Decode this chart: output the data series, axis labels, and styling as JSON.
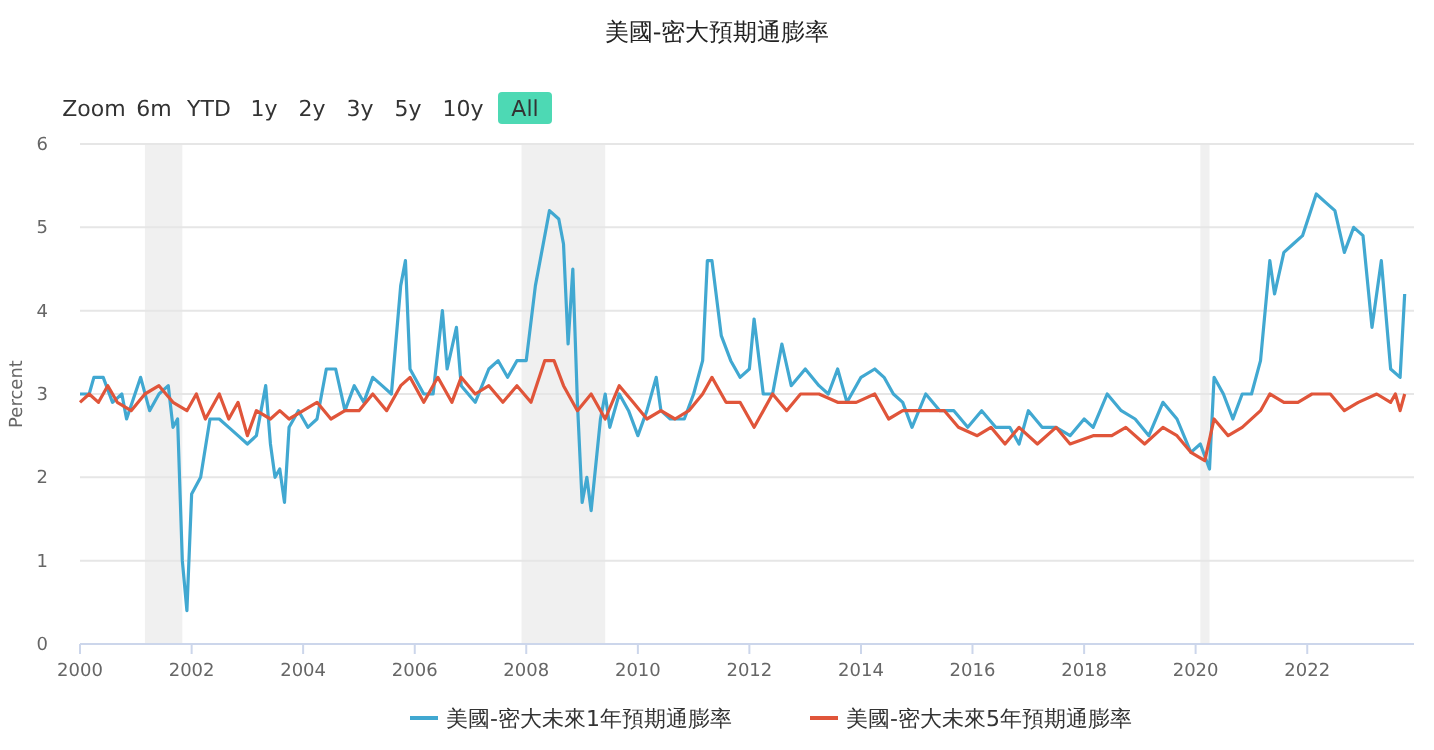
{
  "chart_data": {
    "type": "line",
    "title": "美國-密大預期通膨率",
    "ylabel": "Percent",
    "annotations": [
      "Zoom",
      "6m",
      "YTD",
      "1y",
      "2y",
      "3y",
      "5y",
      "10y",
      "All"
    ],
    "xlim": [
      "2000-01",
      "2023-12"
    ],
    "xticks": [
      "2000",
      "2002",
      "2004",
      "2006",
      "2008",
      "2010",
      "2012",
      "2014",
      "2016",
      "2018",
      "2020",
      "2022"
    ],
    "ylim": [
      0,
      6
    ],
    "yticks": [
      0,
      1,
      2,
      3,
      4,
      5,
      6
    ],
    "grid": "y",
    "legend": "bottom",
    "line_style": "solid",
    "marker": "none",
    "bands": [
      {
        "axis": "x",
        "from": "2001-03",
        "to": "2001-11",
        "color": "#f0f0f0"
      },
      {
        "axis": "x",
        "from": "2007-12",
        "to": "2009-06",
        "color": "#f0f0f0"
      },
      {
        "axis": "x",
        "from": "2020-02",
        "to": "2020-04",
        "color": "#f0f0f0"
      }
    ],
    "series": [
      {
        "name": "美國-密大未來1年預期通膨率",
        "color": "#41a8d1",
        "x": [
          "2000-01",
          "2000-03",
          "2000-04",
          "2000-06",
          "2000-08",
          "2000-10",
          "2000-11",
          "2001-02",
          "2001-04",
          "2001-06",
          "2001-08",
          "2001-09",
          "2001-10",
          "2001-11",
          "2001-12",
          "2002-01",
          "2002-03",
          "2002-05",
          "2002-07",
          "2002-09",
          "2002-11",
          "2003-01",
          "2003-03",
          "2003-05",
          "2003-06",
          "2003-07",
          "2003-08",
          "2003-09",
          "2003-10",
          "2003-12",
          "2004-02",
          "2004-04",
          "2004-06",
          "2004-08",
          "2004-10",
          "2004-12",
          "2005-02",
          "2005-04",
          "2005-06",
          "2005-08",
          "2005-10",
          "2005-11",
          "2005-12",
          "2006-03",
          "2006-05",
          "2006-07",
          "2006-08",
          "2006-10",
          "2006-11",
          "2007-02",
          "2007-05",
          "2007-07",
          "2007-09",
          "2007-11",
          "2008-01",
          "2008-03",
          "2008-06",
          "2008-08",
          "2008-09",
          "2008-10",
          "2008-11",
          "2008-12",
          "2009-01",
          "2009-02",
          "2009-03",
          "2009-05",
          "2009-06",
          "2009-07",
          "2009-09",
          "2009-11",
          "2010-01",
          "2010-03",
          "2010-05",
          "2010-06",
          "2010-08",
          "2010-11",
          "2011-01",
          "2011-03",
          "2011-04",
          "2011-05",
          "2011-07",
          "2011-09",
          "2011-11",
          "2012-01",
          "2012-02",
          "2012-04",
          "2012-06",
          "2012-08",
          "2012-10",
          "2013-01",
          "2013-04",
          "2013-06",
          "2013-08",
          "2013-10",
          "2014-01",
          "2014-04",
          "2014-06",
          "2014-08",
          "2014-10",
          "2014-12",
          "2015-03",
          "2015-06",
          "2015-09",
          "2015-12",
          "2016-03",
          "2016-06",
          "2016-09",
          "2016-11",
          "2017-01",
          "2017-04",
          "2017-07",
          "2017-10",
          "2018-01",
          "2018-03",
          "2018-06",
          "2018-09",
          "2018-12",
          "2019-03",
          "2019-06",
          "2019-09",
          "2019-12",
          "2020-02",
          "2020-04",
          "2020-05",
          "2020-07",
          "2020-09",
          "2020-11",
          "2021-01",
          "2021-03",
          "2021-05",
          "2021-06",
          "2021-08",
          "2021-10",
          "2021-12",
          "2022-03",
          "2022-05",
          "2022-07",
          "2022-09",
          "2022-11",
          "2023-01",
          "2023-03",
          "2023-05",
          "2023-07",
          "2023-09",
          "2023-10"
        ],
        "values": [
          3.0,
          3.0,
          3.2,
          3.2,
          2.9,
          3.0,
          2.7,
          3.2,
          2.8,
          3.0,
          3.1,
          2.6,
          2.7,
          1.0,
          0.4,
          1.8,
          2.0,
          2.7,
          2.7,
          2.6,
          2.5,
          2.4,
          2.5,
          3.1,
          2.4,
          2.0,
          2.1,
          1.7,
          2.6,
          2.8,
          2.6,
          2.7,
          3.3,
          3.3,
          2.8,
          3.1,
          2.9,
          3.2,
          3.1,
          3.0,
          4.3,
          4.6,
          3.3,
          3.0,
          3.0,
          4.0,
          3.3,
          3.8,
          3.1,
          2.9,
          3.3,
          3.4,
          3.2,
          3.4,
          3.4,
          4.3,
          5.2,
          5.1,
          4.8,
          3.6,
          4.5,
          2.9,
          1.7,
          2.0,
          1.6,
          2.7,
          3.0,
          2.6,
          3.0,
          2.8,
          2.5,
          2.8,
          3.2,
          2.8,
          2.7,
          2.7,
          3.0,
          3.4,
          4.6,
          4.6,
          3.7,
          3.4,
          3.2,
          3.3,
          3.9,
          3.0,
          3.0,
          3.6,
          3.1,
          3.3,
          3.1,
          3.0,
          3.3,
          2.9,
          3.2,
          3.3,
          3.2,
          3.0,
          2.9,
          2.6,
          3.0,
          2.8,
          2.8,
          2.6,
          2.8,
          2.6,
          2.6,
          2.4,
          2.8,
          2.6,
          2.6,
          2.5,
          2.7,
          2.6,
          3.0,
          2.8,
          2.7,
          2.5,
          2.9,
          2.7,
          2.3,
          2.4,
          2.1,
          3.2,
          3.0,
          2.7,
          3.0,
          3.0,
          3.4,
          4.6,
          4.2,
          4.7,
          4.8,
          4.9,
          5.4,
          5.3,
          5.2,
          4.7,
          5.0,
          4.9,
          3.8,
          4.6,
          3.3,
          3.2,
          4.2
        ]
      },
      {
        "name": "美國-密大未來5年預期通膨率",
        "color": "#e0553a",
        "x": [
          "2000-01",
          "2000-03",
          "2000-05",
          "2000-07",
          "2000-09",
          "2000-12",
          "2001-03",
          "2001-06",
          "2001-09",
          "2001-12",
          "2002-02",
          "2002-04",
          "2002-07",
          "2002-09",
          "2002-11",
          "2003-01",
          "2003-03",
          "2003-06",
          "2003-08",
          "2003-10",
          "2004-01",
          "2004-04",
          "2004-07",
          "2004-10",
          "2005-01",
          "2005-04",
          "2005-07",
          "2005-10",
          "2005-12",
          "2006-03",
          "2006-06",
          "2006-09",
          "2006-11",
          "2007-02",
          "2007-05",
          "2007-08",
          "2007-11",
          "2008-02",
          "2008-05",
          "2008-07",
          "2008-09",
          "2008-12",
          "2009-03",
          "2009-06",
          "2009-09",
          "2009-12",
          "2010-03",
          "2010-06",
          "2010-09",
          "2010-12",
          "2011-03",
          "2011-05",
          "2011-08",
          "2011-11",
          "2012-02",
          "2012-06",
          "2012-09",
          "2012-12",
          "2013-04",
          "2013-08",
          "2013-12",
          "2014-04",
          "2014-07",
          "2014-10",
          "2015-03",
          "2015-07",
          "2015-10",
          "2016-02",
          "2016-05",
          "2016-08",
          "2016-11",
          "2017-03",
          "2017-07",
          "2017-10",
          "2018-03",
          "2018-07",
          "2018-10",
          "2019-02",
          "2019-06",
          "2019-09",
          "2019-12",
          "2020-03",
          "2020-05",
          "2020-08",
          "2020-11",
          "2021-03",
          "2021-05",
          "2021-08",
          "2021-11",
          "2022-02",
          "2022-06",
          "2022-09",
          "2022-12",
          "2023-04",
          "2023-07",
          "2023-08",
          "2023-09",
          "2023-10"
        ],
        "values": [
          2.9,
          3.0,
          2.9,
          3.1,
          2.9,
          2.8,
          3.0,
          3.1,
          2.9,
          2.8,
          3.0,
          2.7,
          3.0,
          2.7,
          2.9,
          2.5,
          2.8,
          2.7,
          2.8,
          2.7,
          2.8,
          2.9,
          2.7,
          2.8,
          2.8,
          3.0,
          2.8,
          3.1,
          3.2,
          2.9,
          3.2,
          2.9,
          3.2,
          3.0,
          3.1,
          2.9,
          3.1,
          2.9,
          3.4,
          3.4,
          3.1,
          2.8,
          3.0,
          2.7,
          3.1,
          2.9,
          2.7,
          2.8,
          2.7,
          2.8,
          3.0,
          3.2,
          2.9,
          2.9,
          2.6,
          3.0,
          2.8,
          3.0,
          3.0,
          2.9,
          2.9,
          3.0,
          2.7,
          2.8,
          2.8,
          2.8,
          2.6,
          2.5,
          2.6,
          2.4,
          2.6,
          2.4,
          2.6,
          2.4,
          2.5,
          2.5,
          2.6,
          2.4,
          2.6,
          2.5,
          2.3,
          2.2,
          2.7,
          2.5,
          2.6,
          2.8,
          3.0,
          2.9,
          2.9,
          3.0,
          3.0,
          2.8,
          2.9,
          3.0,
          2.9,
          3.0,
          2.8,
          3.0
        ]
      }
    ]
  }
}
